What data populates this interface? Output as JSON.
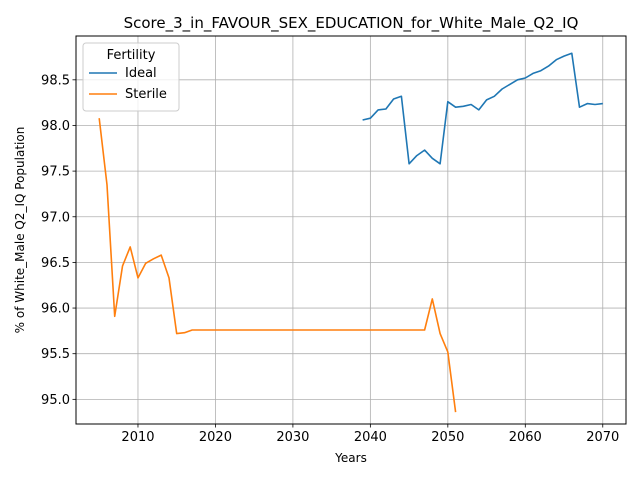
{
  "chart_data": {
    "type": "line",
    "title": "Score_3_in_FAVOUR_SEX_EDUCATION_for_White_Male_Q2_IQ",
    "xlabel": "Years",
    "ylabel": "% of White_Male Q2_IQ Population",
    "xlim": [
      2002,
      2073
    ],
    "ylim": [
      94.73,
      98.98
    ],
    "xticks": [
      2010,
      2020,
      2030,
      2040,
      2050,
      2060,
      2070
    ],
    "yticks": [
      95.0,
      95.5,
      96.0,
      96.5,
      97.0,
      97.5,
      98.0,
      98.5
    ],
    "ytick_labels": [
      "95.0",
      "95.5",
      "96.0",
      "96.5",
      "97.0",
      "97.5",
      "98.0",
      "98.5"
    ],
    "grid": true,
    "legend": {
      "title": "Fertility",
      "position": "top-left"
    },
    "series": [
      {
        "name": "Ideal",
        "color": "#1f77b4",
        "x": [
          2039,
          2040,
          2041,
          2042,
          2043,
          2044,
          2045,
          2046,
          2047,
          2048,
          2049,
          2050,
          2051,
          2052,
          2053,
          2054,
          2055,
          2056,
          2057,
          2058,
          2059,
          2060,
          2061,
          2062,
          2063,
          2064,
          2065,
          2066,
          2067,
          2068,
          2069,
          2070
        ],
        "y": [
          98.06,
          98.08,
          98.17,
          98.18,
          98.29,
          98.32,
          97.58,
          97.67,
          97.73,
          97.64,
          97.58,
          98.26,
          98.2,
          98.21,
          98.23,
          98.17,
          98.28,
          98.32,
          98.4,
          98.45,
          98.5,
          98.52,
          98.57,
          98.6,
          98.65,
          98.72,
          98.76,
          98.79,
          98.2,
          98.24,
          98.23,
          98.24
        ]
      },
      {
        "name": "Sterile",
        "color": "#ff7f0e",
        "x": [
          2005,
          2006,
          2007,
          2008,
          2009,
          2010,
          2011,
          2012,
          2013,
          2014,
          2015,
          2016,
          2017,
          2018,
          2019,
          2020,
          2021,
          2022,
          2023,
          2024,
          2025,
          2026,
          2027,
          2028,
          2029,
          2030,
          2031,
          2032,
          2033,
          2034,
          2035,
          2036,
          2037,
          2038,
          2039,
          2040,
          2041,
          2042,
          2043,
          2044,
          2045,
          2046,
          2047,
          2048,
          2049,
          2050,
          2051
        ],
        "y": [
          98.08,
          97.35,
          95.91,
          96.46,
          96.67,
          96.33,
          96.49,
          96.54,
          96.58,
          96.33,
          95.72,
          95.73,
          95.76,
          95.76,
          95.76,
          95.76,
          95.76,
          95.76,
          95.76,
          95.76,
          95.76,
          95.76,
          95.76,
          95.76,
          95.76,
          95.76,
          95.76,
          95.76,
          95.76,
          95.76,
          95.76,
          95.76,
          95.76,
          95.76,
          95.76,
          95.76,
          95.76,
          95.76,
          95.76,
          95.76,
          95.76,
          95.76,
          95.76,
          96.1,
          95.72,
          95.52,
          94.86
        ]
      }
    ]
  }
}
